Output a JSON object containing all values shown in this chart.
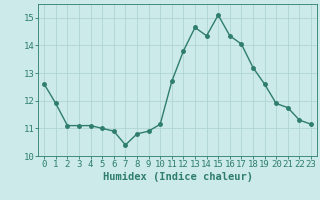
{
  "x": [
    0,
    1,
    2,
    3,
    4,
    5,
    6,
    7,
    8,
    9,
    10,
    11,
    12,
    13,
    14,
    15,
    16,
    17,
    18,
    19,
    20,
    21,
    22,
    23
  ],
  "y": [
    12.6,
    11.9,
    11.1,
    11.1,
    11.1,
    11.0,
    10.9,
    10.4,
    10.8,
    10.9,
    11.15,
    12.7,
    13.8,
    14.65,
    14.35,
    15.1,
    14.35,
    14.05,
    13.2,
    12.6,
    11.9,
    11.75,
    11.3,
    11.15
  ],
  "line_color": "#2e7d6e",
  "marker": "o",
  "markersize": 2.5,
  "linewidth": 1.0,
  "bg_color": "#cceaea",
  "grid_color": "#b0d4d4",
  "xlabel": "Humidex (Indice chaleur)",
  "ylim": [
    10,
    15.5
  ],
  "xlim": [
    -0.5,
    23.5
  ],
  "yticks": [
    10,
    11,
    12,
    13,
    14,
    15
  ],
  "xticks": [
    0,
    1,
    2,
    3,
    4,
    5,
    6,
    7,
    8,
    9,
    10,
    11,
    12,
    13,
    14,
    15,
    16,
    17,
    18,
    19,
    20,
    21,
    22,
    23
  ],
  "tick_color": "#2e7d6e",
  "label_color": "#2e7d6e",
  "font_size": 6.5,
  "xlabel_fontsize": 7.5
}
